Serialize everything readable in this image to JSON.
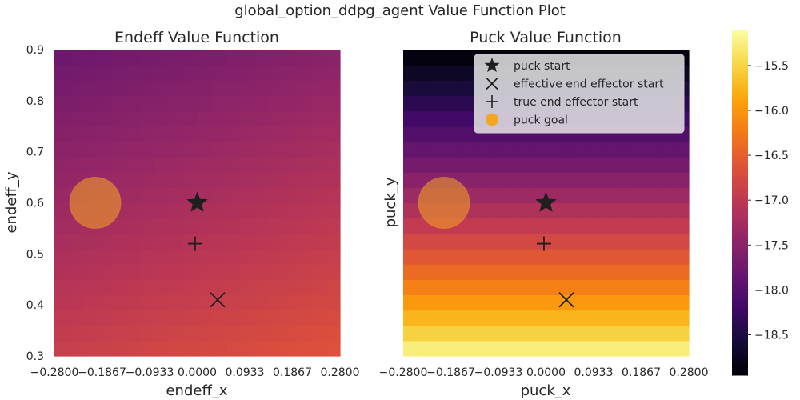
{
  "suptitle": "global_option_ddpg_agent Value Function Plot",
  "colormap": "inferno",
  "colorbar": {
    "vmin": -18.95,
    "vmax": -15.1,
    "ticks": [
      -18.5,
      -18.0,
      -17.5,
      -17.0,
      -16.5,
      -16.0,
      -15.5
    ],
    "tick_labels": [
      "−18.5",
      "−18.0",
      "−17.5",
      "−17.0",
      "−16.5",
      "−16.0",
      "−15.5"
    ]
  },
  "chart_data": [
    {
      "type": "heatmap",
      "title": "Endeff Value Function",
      "xlabel": "endeff_x",
      "ylabel": "endeff_y",
      "xlim": [
        -0.28,
        0.28
      ],
      "ylim": [
        0.3,
        0.9
      ],
      "x_ticks": [
        -0.28,
        -0.1867,
        -0.0933,
        0.0,
        0.0933,
        0.1867,
        0.28
      ],
      "x_tick_labels": [
        "−0.2800",
        "−0.1867",
        "−0.0933",
        "0.0000",
        "0.0933",
        "0.1867",
        "0.2800"
      ],
      "y_ticks": [
        0.3,
        0.4,
        0.5,
        0.6,
        0.7,
        0.8,
        0.9
      ],
      "y_tick_labels": [
        "0.3",
        "0.4",
        "0.5",
        "0.6",
        "0.7",
        "0.8",
        "0.9"
      ],
      "show_y_tick_labels": true,
      "grid": false,
      "value_field": {
        "grid_size": [
          20,
          20
        ],
        "value_bottom": -16.75,
        "value_top": -17.65,
        "x_gradient_per_unit": 0.5,
        "curve_exponent": 1.0
      },
      "markers": {
        "puck_start": [
          0.0,
          0.6
        ],
        "effective_end_effector_start": [
          0.04,
          0.41
        ],
        "true_end_effector_start": [
          -0.004,
          0.52
        ],
        "puck_goal": [
          -0.2,
          0.6
        ]
      },
      "show_legend": false
    },
    {
      "type": "heatmap",
      "title": "Puck Value Function",
      "xlabel": "puck_x",
      "ylabel": "puck_y",
      "xlim": [
        -0.28,
        0.28
      ],
      "ylim": [
        0.3,
        0.9
      ],
      "x_ticks": [
        -0.28,
        -0.1867,
        -0.0933,
        0.0,
        0.0933,
        0.1867,
        0.28
      ],
      "x_tick_labels": [
        "−0.2800",
        "−0.1867",
        "−0.0933",
        "0.0000",
        "0.0933",
        "0.1867",
        "0.2800"
      ],
      "y_ticks": [
        0.3,
        0.4,
        0.5,
        0.6,
        0.7,
        0.8,
        0.9
      ],
      "y_tick_labels": [],
      "show_y_tick_labels": false,
      "grid": false,
      "value_field": {
        "grid_size": [
          20,
          20
        ],
        "value_bottom": -15.1,
        "value_top": -18.95,
        "x_gradient_per_unit": 0.0,
        "curve_exponent": 0.85
      },
      "markers": {
        "puck_start": [
          0.0,
          0.6
        ],
        "effective_end_effector_start": [
          0.04,
          0.41
        ],
        "true_end_effector_start": [
          -0.004,
          0.52
        ],
        "puck_goal": [
          -0.2,
          0.6
        ]
      },
      "show_legend": true,
      "legend_position": "top-right",
      "legend": [
        {
          "marker": "star",
          "label": "puck start"
        },
        {
          "marker": "x",
          "label": "effective end effector start"
        },
        {
          "marker": "plus",
          "label": "true end effector start"
        },
        {
          "marker": "circle",
          "label": "puck goal"
        }
      ]
    }
  ],
  "colors": {
    "marker": "#1f1f1f",
    "goal": "#f5a623",
    "legend_bg": "#e6e6e6",
    "legend_border": "#cccccc"
  }
}
